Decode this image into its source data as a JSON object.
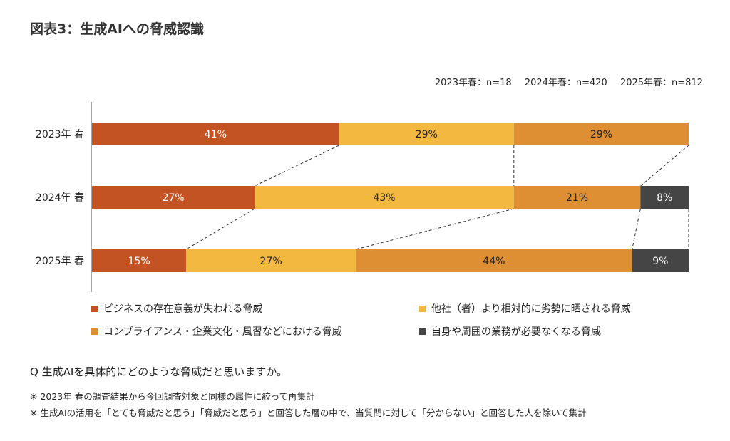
{
  "title": "図表3：生成AIへの脅威認識",
  "sample_sizes": [
    "2023年春：n=18",
    "2024年春：n=420",
    "2025年春：n=812"
  ],
  "question": "Q 生成AIを具体的にどのような脅威だと思いますか。",
  "notes": [
    "※ 2023年 春の調査結果から今回調査対象と同様の属性に絞って再集計",
    "※ 生成AIの活用を「とても脅威だと思う」「脅威だと思う」と回答した層の中で、当質問に対して「分からない」と回答した人を除いて集計"
  ],
  "chart_data": {
    "type": "bar",
    "orientation": "horizontal",
    "stacked": true,
    "normalized_100": true,
    "categories": [
      "2023年 春",
      "2024年 春",
      "2025年 春"
    ],
    "series": [
      {
        "name": "ビジネスの存在意義が失われる脅威",
        "color": "#c35323",
        "values": [
          41,
          27,
          15
        ]
      },
      {
        "name": "他社（者）より相対的に劣勢に晒される脅威",
        "color": "#f2b840",
        "values": [
          29,
          43,
          27
        ]
      },
      {
        "name": "コンプライアンス・企業文化・風習などにおける脅威",
        "color": "#de8f34",
        "values": [
          29,
          21,
          44
        ]
      },
      {
        "name": "自身や周囲の業務が必要なくなる脅威",
        "color": "#454545",
        "values": [
          null,
          8,
          9
        ]
      }
    ],
    "unit": "%",
    "connector_lines": "dashed",
    "legend_position": "bottom",
    "grid": false
  }
}
